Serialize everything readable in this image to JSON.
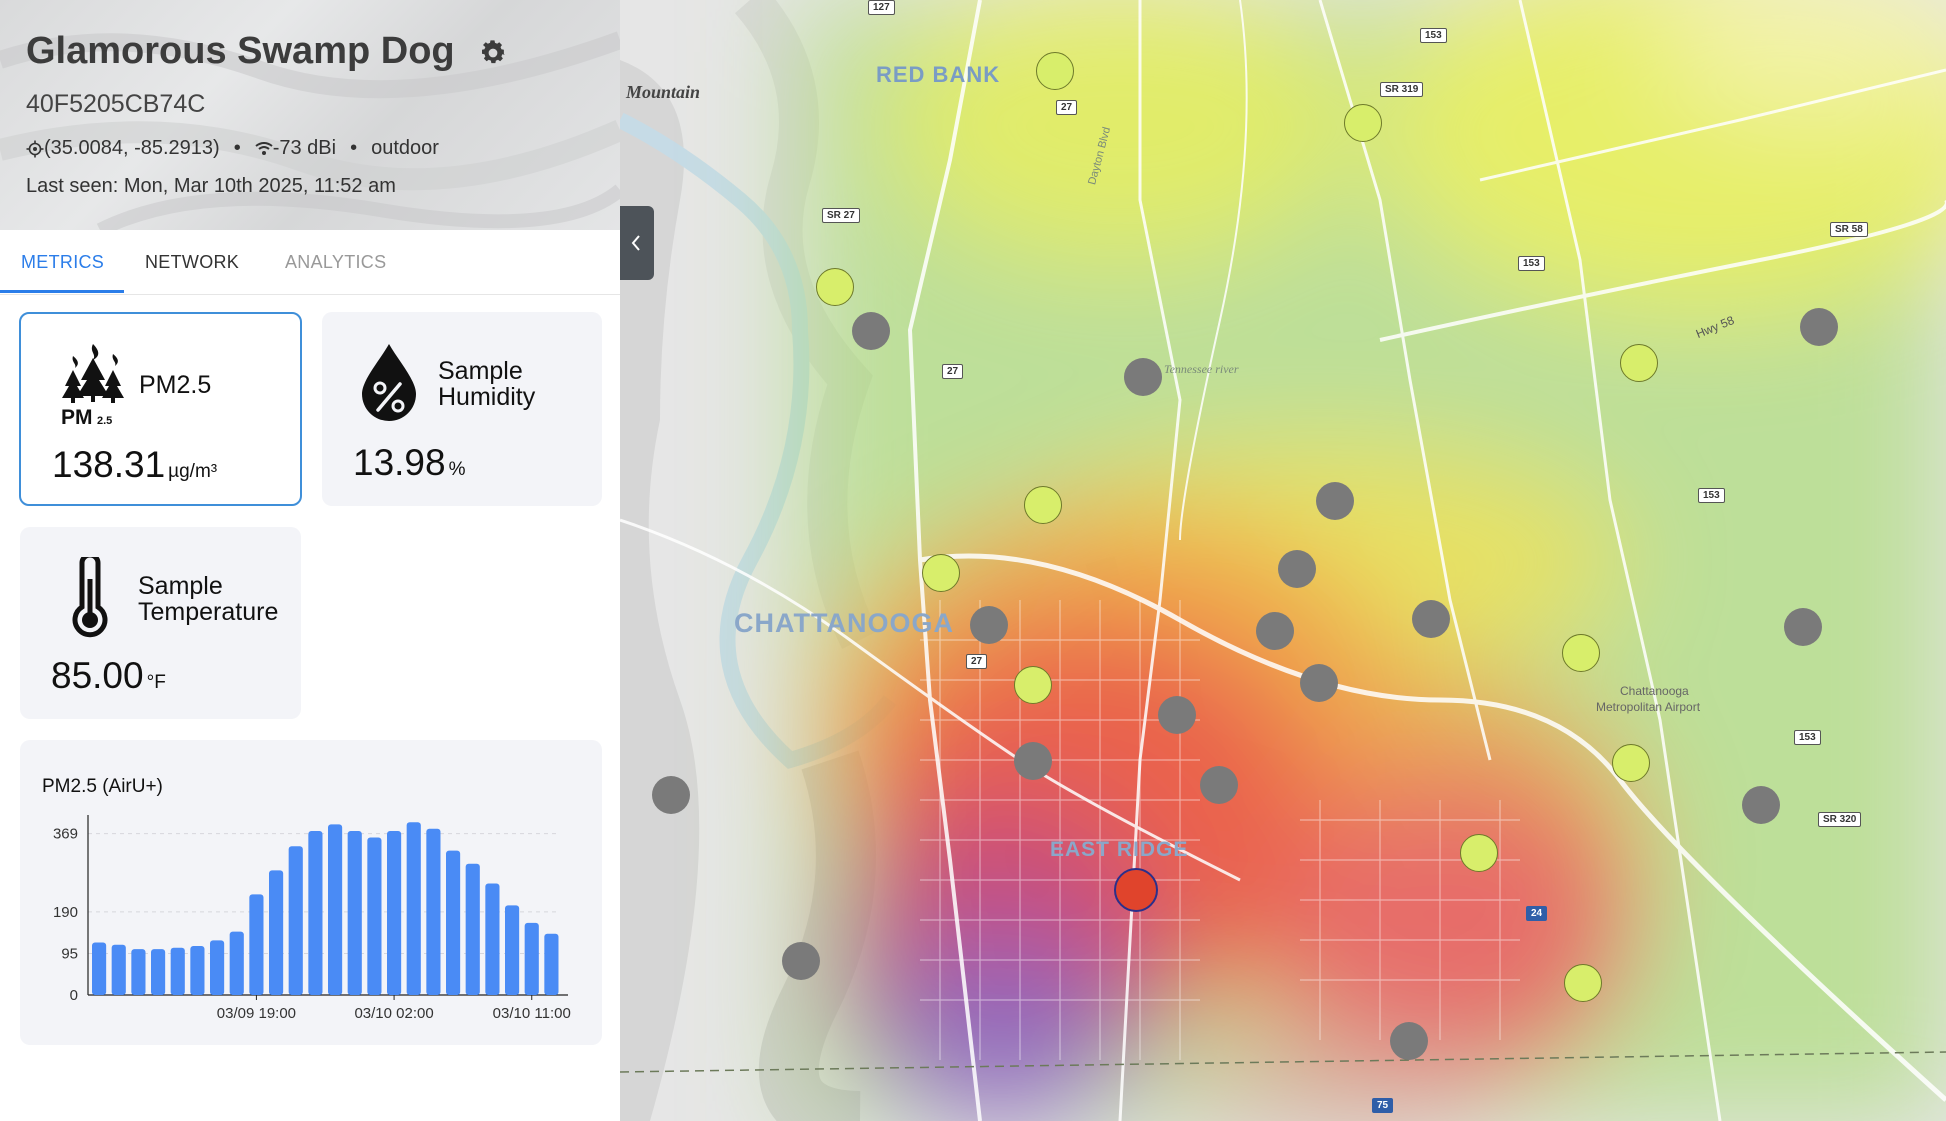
{
  "device": {
    "name": "Glamorous Swamp Dog",
    "id": "40F5205CB74C",
    "coordinates": "(35.0084, -85.2913)",
    "signal": "-73 dBi",
    "placement": "outdoor",
    "last_seen": "Last seen: Mon, Mar 10th 2025, 11:52 am",
    "separator": "•"
  },
  "tabs": [
    {
      "label": "METRICS",
      "active": true
    },
    {
      "label": "NETWORK",
      "active": false
    },
    {
      "label": "ANALYTICS",
      "active": false
    }
  ],
  "metrics": {
    "pm25": {
      "label": "PM2.5",
      "value": "138.31",
      "unit": "µg/m³",
      "icon": "wildfire-pm25-icon",
      "icon_text": "PM",
      "icon_sub": "2.5"
    },
    "humidity": {
      "label_line1": "Sample",
      "label_line2": "Humidity",
      "value": "13.98",
      "unit": "%",
      "icon": "humidity-drop-icon"
    },
    "temperature": {
      "label_line1": "Sample",
      "label_line2": "Temperature",
      "value": "85.00",
      "unit": "°F",
      "icon": "thermometer-icon"
    }
  },
  "chart_data": {
    "type": "bar",
    "title": "PM2.5 (AirU+)",
    "y_ticks": [
      0,
      95,
      190,
      369
    ],
    "x_tick_labels": [
      "03/09 19:00",
      "03/10 02:00",
      "03/10 11:00"
    ],
    "x_tick_indices": [
      8,
      15,
      22
    ],
    "ylim": [
      0,
      400
    ],
    "values": [
      120,
      115,
      105,
      105,
      108,
      112,
      125,
      145,
      230,
      285,
      340,
      375,
      390,
      375,
      360,
      375,
      395,
      380,
      330,
      300,
      255,
      205,
      165,
      140
    ],
    "bar_color": "#4a8bf5",
    "grid": true
  },
  "map": {
    "place_labels": [
      {
        "text": "RED BANK"
      },
      {
        "text": "CHATTANOOGA"
      },
      {
        "text": "EAST RIDGE"
      },
      {
        "text": "Mountain"
      },
      {
        "text": "Chattanooga"
      },
      {
        "text": "Metropolitan Airport"
      },
      {
        "text": "Tennessee river"
      },
      {
        "text": "Dayton Blvd"
      },
      {
        "text": "Hwy 58"
      }
    ],
    "road_shields": [
      "127",
      "153",
      "SR 319",
      "27",
      "SR 27",
      "153",
      "SR 58",
      "27",
      "153",
      "27",
      "153",
      "SR 320",
      "24",
      "75"
    ],
    "marker_colors": {
      "gray": "#7a7a7a",
      "green": "#d8ee6b",
      "red": "#e0442c"
    }
  }
}
